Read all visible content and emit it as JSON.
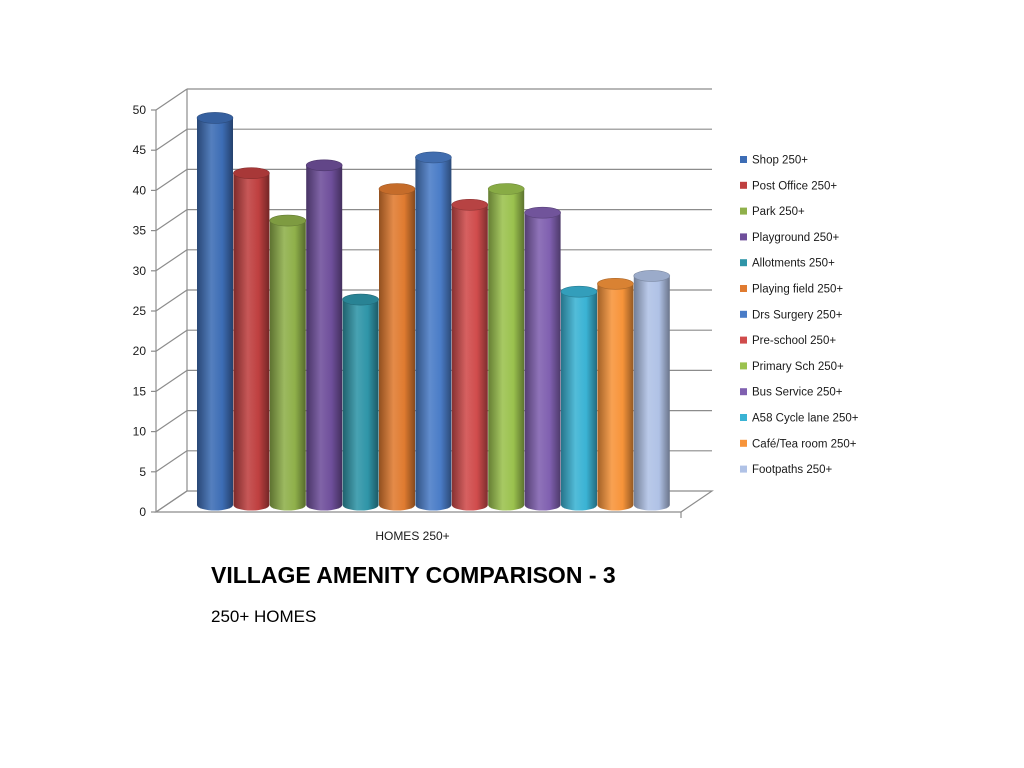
{
  "slide": {
    "title": "VILLAGE AMENITY COMPARISON - 3",
    "subtitle": "250+ HOMES"
  },
  "chart_data": {
    "type": "bar",
    "style": "3d-cylinder",
    "categories": [
      "HOMES 250+"
    ],
    "ylim": [
      0,
      50
    ],
    "yticks": [
      "0",
      "5",
      "10",
      "15",
      "20",
      "25",
      "30",
      "35",
      "40",
      "45",
      "50"
    ],
    "grid": true,
    "legend_position": "right",
    "series": [
      {
        "name": "Shop 250+",
        "values": [
          49
        ],
        "color": "#3d6db5"
      },
      {
        "name": "Post Office 250+",
        "values": [
          42
        ],
        "color": "#bf4040"
      },
      {
        "name": "Park 250+",
        "values": [
          36
        ],
        "color": "#8fb04a"
      },
      {
        "name": "Playground 250+",
        "values": [
          43
        ],
        "color": "#6f4f9b"
      },
      {
        "name": "Allotments 250+",
        "values": [
          26
        ],
        "color": "#2f95a8"
      },
      {
        "name": "Playing field 250+",
        "values": [
          40
        ],
        "color": "#e07b30"
      },
      {
        "name": "Drs Surgery 250+",
        "values": [
          44
        ],
        "color": "#4a7cc7"
      },
      {
        "name": "Pre-school 250+",
        "values": [
          38
        ],
        "color": "#d04c4c"
      },
      {
        "name": "Primary Sch 250+",
        "values": [
          40
        ],
        "color": "#9bc24e"
      },
      {
        "name": "Bus Service 250+",
        "values": [
          37
        ],
        "color": "#8060b0"
      },
      {
        "name": "A58 Cycle lane 250+",
        "values": [
          27
        ],
        "color": "#3ab3d4"
      },
      {
        "name": "Café/Tea room 250+",
        "values": [
          28
        ],
        "color": "#f7943a"
      },
      {
        "name": "Footpaths 250+",
        "values": [
          29
        ],
        "color": "#b0c2e6"
      }
    ]
  }
}
